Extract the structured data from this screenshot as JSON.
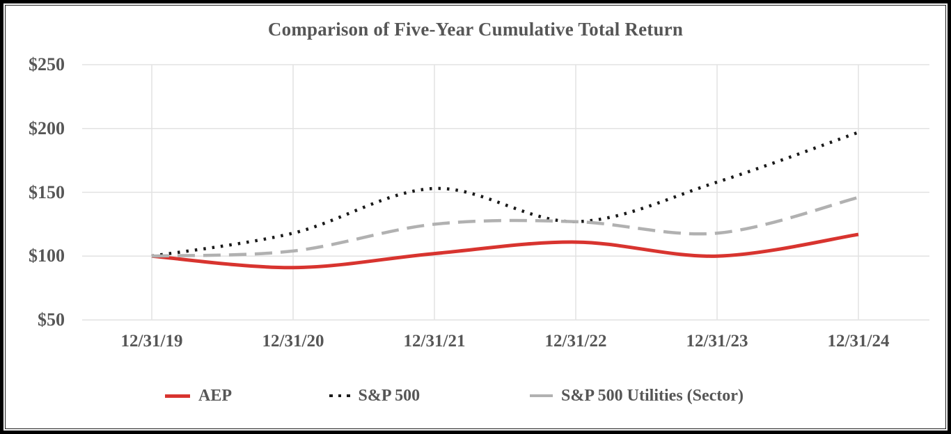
{
  "chart_data": {
    "type": "line",
    "title": "Comparison of Five-Year Cumulative Total Return",
    "x_labels": [
      "12/31/19",
      "12/31/20",
      "12/31/21",
      "12/31/22",
      "12/31/23",
      "12/31/24"
    ],
    "y_tick_labels": [
      "$50",
      "$100",
      "$150",
      "$200",
      "$250"
    ],
    "y_tick_values": [
      50,
      100,
      150,
      200,
      250
    ],
    "ylim": [
      50,
      250
    ],
    "grid": true,
    "legend_position": "bottom",
    "series": [
      {
        "name": "AEP",
        "style": "solid",
        "color": "#d8342f",
        "values": [
          100,
          91,
          102,
          111,
          100,
          117
        ]
      },
      {
        "name": "S&P 500",
        "style": "dotted",
        "color": "#1a1a1a",
        "values": [
          100,
          118,
          153,
          127,
          158,
          197
        ]
      },
      {
        "name": "S&P 500 Utilities (Sector)",
        "style": "dashed",
        "color": "#b1b1b1",
        "values": [
          100,
          104,
          125,
          127,
          118,
          146
        ]
      }
    ],
    "colors": {
      "grid": "#e2e2e2",
      "axis_text": "#565656",
      "border": "#000000"
    }
  }
}
